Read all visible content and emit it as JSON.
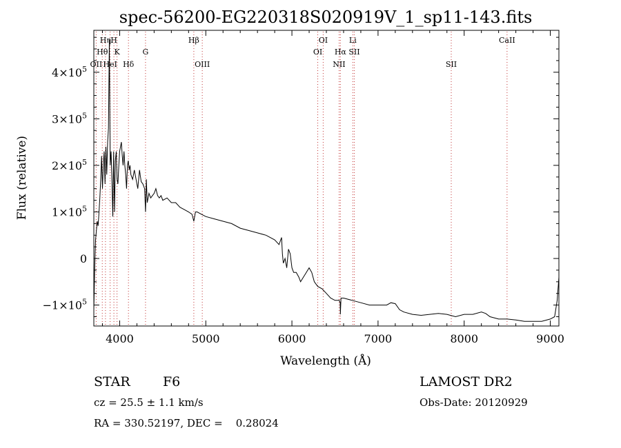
{
  "chart_data": {
    "type": "line",
    "title": "spec-56200-EG220318S020919V_1_sp11-143.fits",
    "xlabel": "Wavelength (Å)",
    "ylabel": "Flux (relative)",
    "xlim": [
      3700,
      9100
    ],
    "ylim": [
      -145000,
      490000
    ],
    "x_ticks": [
      {
        "value": 4000,
        "label": "4000"
      },
      {
        "value": 5000,
        "label": "5000"
      },
      {
        "value": 6000,
        "label": "6000"
      },
      {
        "value": 7000,
        "label": "7000"
      },
      {
        "value": 8000,
        "label": "8000"
      },
      {
        "value": 9000,
        "label": "9000"
      }
    ],
    "y_ticks": [
      {
        "value": -100000,
        "mantissa": "−1×10",
        "exp": "5"
      },
      {
        "value": 0,
        "mantissa": "0",
        "exp": ""
      },
      {
        "value": 100000,
        "mantissa": "1×10",
        "exp": "5"
      },
      {
        "value": 200000,
        "mantissa": "2×10",
        "exp": "5"
      },
      {
        "value": 300000,
        "mantissa": "3×10",
        "exp": "5"
      },
      {
        "value": 400000,
        "mantissa": "4×10",
        "exp": "5"
      }
    ],
    "grid": false,
    "series": [
      {
        "color": "#000000",
        "x": [
          3700,
          3710,
          3720,
          3730,
          3740,
          3750,
          3760,
          3770,
          3780,
          3790,
          3800,
          3810,
          3820,
          3830,
          3840,
          3850,
          3860,
          3870,
          3880,
          3890,
          3900,
          3910,
          3920,
          3930,
          3940,
          3950,
          3960,
          3970,
          3980,
          3990,
          4000,
          4010,
          4020,
          4030,
          4040,
          4050,
          4060,
          4070,
          4080,
          4090,
          4100,
          4110,
          4120,
          4130,
          4150,
          4170,
          4190,
          4210,
          4230,
          4250,
          4270,
          4290,
          4300,
          4310,
          4320,
          4340,
          4360,
          4380,
          4400,
          4420,
          4440,
          4460,
          4480,
          4500,
          4550,
          4600,
          4650,
          4700,
          4750,
          4800,
          4840,
          4861,
          4880,
          4900,
          4950,
          5000,
          5100,
          5200,
          5300,
          5400,
          5500,
          5600,
          5700,
          5800,
          5850,
          5880,
          5890,
          5900,
          5920,
          5940,
          5960,
          5980,
          6000,
          6020,
          6050,
          6080,
          6100,
          6150,
          6200,
          6230,
          6260,
          6300,
          6350,
          6400,
          6450,
          6500,
          6550,
          6560,
          6563,
          6570,
          6600,
          6700,
          6800,
          6900,
          7000,
          7100,
          7150,
          7200,
          7250,
          7300,
          7400,
          7500,
          7600,
          7700,
          7800,
          7900,
          8000,
          8100,
          8200,
          8250,
          8300,
          8400,
          8500,
          8600,
          8700,
          8800,
          8900,
          9000,
          9050,
          9080,
          9100
        ],
        "y": [
          -110000,
          -20000,
          40000,
          60000,
          80000,
          70000,
          100000,
          130000,
          170000,
          220000,
          150000,
          200000,
          230000,
          160000,
          240000,
          180000,
          250000,
          280000,
          470000,
          200000,
          230000,
          170000,
          90000,
          230000,
          100000,
          210000,
          230000,
          170000,
          160000,
          200000,
          230000,
          240000,
          250000,
          220000,
          200000,
          230000,
          200000,
          180000,
          150000,
          200000,
          210000,
          190000,
          200000,
          180000,
          170000,
          190000,
          170000,
          150000,
          190000,
          165000,
          160000,
          150000,
          100000,
          170000,
          120000,
          140000,
          130000,
          135000,
          140000,
          150000,
          135000,
          130000,
          135000,
          125000,
          130000,
          120000,
          120000,
          110000,
          105000,
          100000,
          95000,
          80000,
          100000,
          100000,
          95000,
          90000,
          85000,
          80000,
          75000,
          65000,
          60000,
          55000,
          50000,
          40000,
          30000,
          45000,
          10000,
          -10000,
          0,
          -20000,
          20000,
          10000,
          -20000,
          -30000,
          -30000,
          -40000,
          -50000,
          -35000,
          -20000,
          -30000,
          -50000,
          -60000,
          -65000,
          -75000,
          -85000,
          -90000,
          -90000,
          -95000,
          -120000,
          -85000,
          -85000,
          -90000,
          -95000,
          -100000,
          -100000,
          -100000,
          -95000,
          -97000,
          -110000,
          -115000,
          -120000,
          -122000,
          -120000,
          -118000,
          -120000,
          -125000,
          -120000,
          -120000,
          -115000,
          -118000,
          -125000,
          -130000,
          -130000,
          -132000,
          -135000,
          -135000,
          -135000,
          -130000,
          -125000,
          -90000,
          -40000
        ]
      }
    ],
    "annotations": [
      {
        "label": "OII",
        "wavelength": 3727,
        "row": 2
      },
      {
        "label": "Hθ",
        "wavelength": 3798,
        "row": 1
      },
      {
        "label": "Hη",
        "wavelength": 3835,
        "row": 0
      },
      {
        "label": "HeI",
        "wavelength": 3889,
        "row": 2
      },
      {
        "label": "H",
        "wavelength": 3933,
        "row": 0
      },
      {
        "label": "K",
        "wavelength": 3969,
        "row": 1
      },
      {
        "label": "Hδ",
        "wavelength": 4102,
        "row": 2
      },
      {
        "label": "G",
        "wavelength": 4300,
        "row": 1
      },
      {
        "label": "Hβ",
        "wavelength": 4861,
        "row": 0
      },
      {
        "label": "OIII",
        "wavelength": 4959,
        "row": 2
      },
      {
        "label": "OI",
        "wavelength": 6300,
        "row": 1
      },
      {
        "label": "OI",
        "wavelength": 6363,
        "row": 0
      },
      {
        "label": "NII",
        "wavelength": 6548,
        "row": 2
      },
      {
        "label": "Hα",
        "wavelength": 6563,
        "row": 1
      },
      {
        "label": "Li",
        "wavelength": 6707,
        "row": 0
      },
      {
        "label": "SII",
        "wavelength": 6724,
        "row": 1
      },
      {
        "label": "SII",
        "wavelength": 7850,
        "row": 2
      },
      {
        "label": "CaII",
        "wavelength": 8498,
        "row": 0
      }
    ],
    "marker_color": "#c03030"
  },
  "info": {
    "class": "STAR",
    "subclass": "F6",
    "survey": "LAMOST DR2",
    "cz": "cz = 25.5 ± 1.1 km/s",
    "obs_date": "Obs-Date: 20120929",
    "coords": "RA = 330.52197, DEC =    0.28024"
  }
}
